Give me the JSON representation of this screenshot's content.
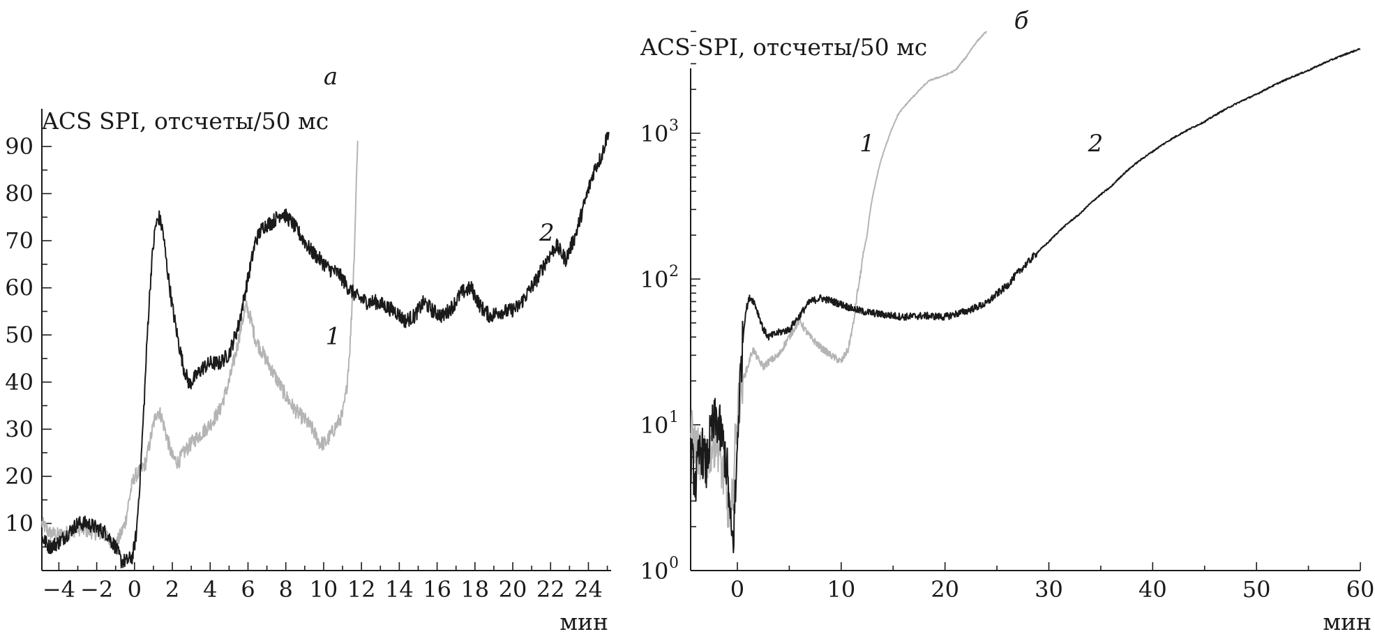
{
  "chart_data": [
    {
      "panel_label": "а",
      "type": "line",
      "ylabel": "ACS SPI, отсчеты/50 мс",
      "xlabel": "мин",
      "xlim": [
        -4.9,
        25.2
      ],
      "ylim": [
        0,
        90
      ],
      "grid": false,
      "x_ticks": [
        -4,
        -2,
        0,
        2,
        4,
        6,
        8,
        10,
        12,
        14,
        16,
        18,
        20,
        22,
        24
      ],
      "x_tick_labels": [
        "−4",
        "−2",
        "0",
        "2",
        "4",
        "6",
        "8",
        "10",
        "12",
        "14",
        "16",
        "18",
        "20",
        "22",
        "24"
      ],
      "y_ticks": [
        10,
        20,
        30,
        40,
        50,
        60,
        70,
        80,
        90
      ],
      "y_tick_labels": [
        "10",
        "20",
        "30",
        "40",
        "50",
        "60",
        "70",
        "80",
        "90"
      ],
      "series": [
        {
          "name": "1",
          "color": "#b4b4b4",
          "label_at": [
            10.5,
            48
          ],
          "points": [
            [
              -4.9,
              10
            ],
            [
              -4.5,
              8
            ],
            [
              -4,
              7.5
            ],
            [
              -3.5,
              8
            ],
            [
              -3,
              9
            ],
            [
              -2.5,
              8.5
            ],
            [
              -2,
              8
            ],
            [
              -1.5,
              7.5
            ],
            [
              -1,
              5
            ],
            [
              -0.5,
              10
            ],
            [
              -0.2,
              17
            ],
            [
              0,
              20
            ],
            [
              0.3,
              21
            ],
            [
              0.6,
              23
            ],
            [
              0.8,
              27
            ],
            [
              1,
              31
            ],
            [
              1.2,
              34
            ],
            [
              1.4,
              33
            ],
            [
              1.6,
              30
            ],
            [
              1.8,
              27
            ],
            [
              2,
              24
            ],
            [
              2.3,
              23
            ],
            [
              2.6,
              25
            ],
            [
              3,
              27
            ],
            [
              3.5,
              29
            ],
            [
              4,
              31
            ],
            [
              4.5,
              34
            ],
            [
              5,
              40
            ],
            [
              5.4,
              47
            ],
            [
              5.7,
              53
            ],
            [
              5.9,
              56
            ],
            [
              6.1,
              54
            ],
            [
              6.4,
              49
            ],
            [
              6.8,
              46
            ],
            [
              7.2,
              43
            ],
            [
              7.6,
              40
            ],
            [
              8,
              37
            ],
            [
              8.5,
              34
            ],
            [
              9,
              32
            ],
            [
              9.4,
              30
            ],
            [
              9.8,
              27
            ],
            [
              10.1,
              27
            ],
            [
              10.4,
              29
            ],
            [
              10.7,
              31
            ],
            [
              11,
              33
            ],
            [
              11.2,
              38
            ],
            [
              11.4,
              48
            ],
            [
              11.6,
              65
            ],
            [
              11.8,
              92
            ]
          ]
        },
        {
          "name": "2",
          "color": "#1a1a1a",
          "label_at": [
            21.8,
            70
          ],
          "points": [
            [
              -4.9,
              7
            ],
            [
              -4.5,
              5
            ],
            [
              -4,
              6
            ],
            [
              -3.5,
              8
            ],
            [
              -3,
              10
            ],
            [
              -2.5,
              10
            ],
            [
              -2,
              9
            ],
            [
              -1.5,
              8
            ],
            [
              -1,
              5
            ],
            [
              -0.7,
              2
            ],
            [
              -0.4,
              2
            ],
            [
              -0.1,
              3
            ],
            [
              0.1,
              8
            ],
            [
              0.3,
              20
            ],
            [
              0.5,
              35
            ],
            [
              0.7,
              52
            ],
            [
              0.9,
              65
            ],
            [
              1.1,
              73
            ],
            [
              1.3,
              75
            ],
            [
              1.5,
              72
            ],
            [
              1.7,
              65
            ],
            [
              2,
              56
            ],
            [
              2.3,
              49
            ],
            [
              2.6,
              43
            ],
            [
              2.9,
              39.5
            ],
            [
              3.2,
              41
            ],
            [
              3.6,
              43
            ],
            [
              4,
              44
            ],
            [
              4.5,
              44
            ],
            [
              5,
              46
            ],
            [
              5.5,
              52
            ],
            [
              6,
              62
            ],
            [
              6.4,
              70
            ],
            [
              6.8,
              73
            ],
            [
              7.3,
              74
            ],
            [
              7.8,
              76
            ],
            [
              8.3,
              74
            ],
            [
              8.8,
              71
            ],
            [
              9.3,
              68
            ],
            [
              9.8,
              66
            ],
            [
              10.3,
              64
            ],
            [
              10.8,
              63
            ],
            [
              11.3,
              60
            ],
            [
              11.8,
              58
            ],
            [
              12.3,
              57
            ],
            [
              12.8,
              57
            ],
            [
              13.3,
              56
            ],
            [
              13.8,
              55
            ],
            [
              14.3,
              53
            ],
            [
              14.8,
              54
            ],
            [
              15.3,
              57
            ],
            [
              15.8,
              55
            ],
            [
              16.3,
              54
            ],
            [
              16.8,
              56
            ],
            [
              17.3,
              59
            ],
            [
              17.8,
              60
            ],
            [
              18.3,
              56
            ],
            [
              18.8,
              54
            ],
            [
              19.3,
              55
            ],
            [
              19.8,
              55
            ],
            [
              20.3,
              56
            ],
            [
              20.8,
              59
            ],
            [
              21.3,
              62
            ],
            [
              21.8,
              66
            ],
            [
              22.3,
              69
            ],
            [
              22.8,
              66
            ],
            [
              23.3,
              71
            ],
            [
              23.8,
              78
            ],
            [
              24.3,
              85
            ],
            [
              24.7,
              88
            ],
            [
              25.1,
              94
            ]
          ]
        }
      ]
    },
    {
      "panel_label": "б",
      "type": "line",
      "ylabel": "ACS SPI, отсчеты/50 мс",
      "xlabel": "мин",
      "xlim": [
        -4.5,
        60
      ],
      "ylim": [
        1,
        5000
      ],
      "y_scale": "log",
      "grid": false,
      "x_ticks": [
        0,
        10,
        20,
        30,
        40,
        50,
        60
      ],
      "x_tick_labels": [
        "0",
        "10",
        "20",
        "30",
        "40",
        "50",
        "60"
      ],
      "y_ticks": [
        1,
        10,
        100,
        1000
      ],
      "y_tick_base": "10",
      "y_tick_exponents": [
        "0",
        "1",
        "2",
        "3"
      ],
      "series": [
        {
          "name": "1",
          "color": "#b4b4b4",
          "label_at": [
            12.5,
            750
          ],
          "points": [
            [
              -4.5,
              9
            ],
            [
              -4,
              7
            ],
            [
              -3.5,
              6
            ],
            [
              -3,
              5.5
            ],
            [
              -2.5,
              7
            ],
            [
              -2,
              8
            ],
            [
              -1.5,
              5
            ],
            [
              -1,
              3
            ],
            [
              -0.6,
              2
            ],
            [
              -0.3,
              5
            ],
            [
              0,
              12
            ],
            [
              0.5,
              20
            ],
            [
              1,
              25
            ],
            [
              1.5,
              33
            ],
            [
              2,
              28
            ],
            [
              2.5,
              25
            ],
            [
              3,
              27
            ],
            [
              4,
              30
            ],
            [
              5,
              40
            ],
            [
              6,
              52
            ],
            [
              6.5,
              45
            ],
            [
              7,
              40
            ],
            [
              8,
              34
            ],
            [
              9,
              30
            ],
            [
              10,
              27
            ],
            [
              10.7,
              33
            ],
            [
              11.2,
              50
            ],
            [
              11.8,
              100
            ],
            [
              12.5,
              200
            ],
            [
              13.3,
              450
            ],
            [
              14.5,
              900
            ],
            [
              15.5,
              1350
            ],
            [
              17,
              1800
            ],
            [
              18.5,
              2300
            ],
            [
              20,
              2500
            ],
            [
              21,
              2700
            ],
            [
              22,
              3300
            ],
            [
              23,
              4200
            ],
            [
              24,
              5000
            ]
          ]
        },
        {
          "name": "2",
          "color": "#1a1a1a",
          "label_at": [
            34.5,
            750
          ],
          "points": [
            [
              -4.5,
              6
            ],
            [
              -4,
              4
            ],
            [
              -3.5,
              7
            ],
            [
              -3,
              5
            ],
            [
              -2.5,
              9
            ],
            [
              -2,
              11
            ],
            [
              -1.5,
              8
            ],
            [
              -1,
              5
            ],
            [
              -0.7,
              2
            ],
            [
              -0.4,
              1.5
            ],
            [
              -0.1,
              4
            ],
            [
              0.2,
              15
            ],
            [
              0.5,
              35
            ],
            [
              0.8,
              60
            ],
            [
              1.2,
              75
            ],
            [
              1.6,
              70
            ],
            [
              2,
              58
            ],
            [
              2.5,
              45
            ],
            [
              3,
              40
            ],
            [
              4,
              43
            ],
            [
              5,
              45
            ],
            [
              6,
              56
            ],
            [
              7,
              70
            ],
            [
              8,
              74
            ],
            [
              9,
              71
            ],
            [
              10,
              67
            ],
            [
              11,
              63
            ],
            [
              12,
              60
            ],
            [
              14,
              57
            ],
            [
              16,
              55
            ],
            [
              18,
              56
            ],
            [
              20,
              55
            ],
            [
              22,
              60
            ],
            [
              24,
              68
            ],
            [
              26,
              90
            ],
            [
              28,
              130
            ],
            [
              30,
              180
            ],
            [
              33,
              280
            ],
            [
              36,
              430
            ],
            [
              40,
              750
            ],
            [
              45,
              1200
            ],
            [
              50,
              1850
            ],
            [
              55,
              2700
            ],
            [
              60,
              3800
            ]
          ]
        }
      ]
    }
  ]
}
